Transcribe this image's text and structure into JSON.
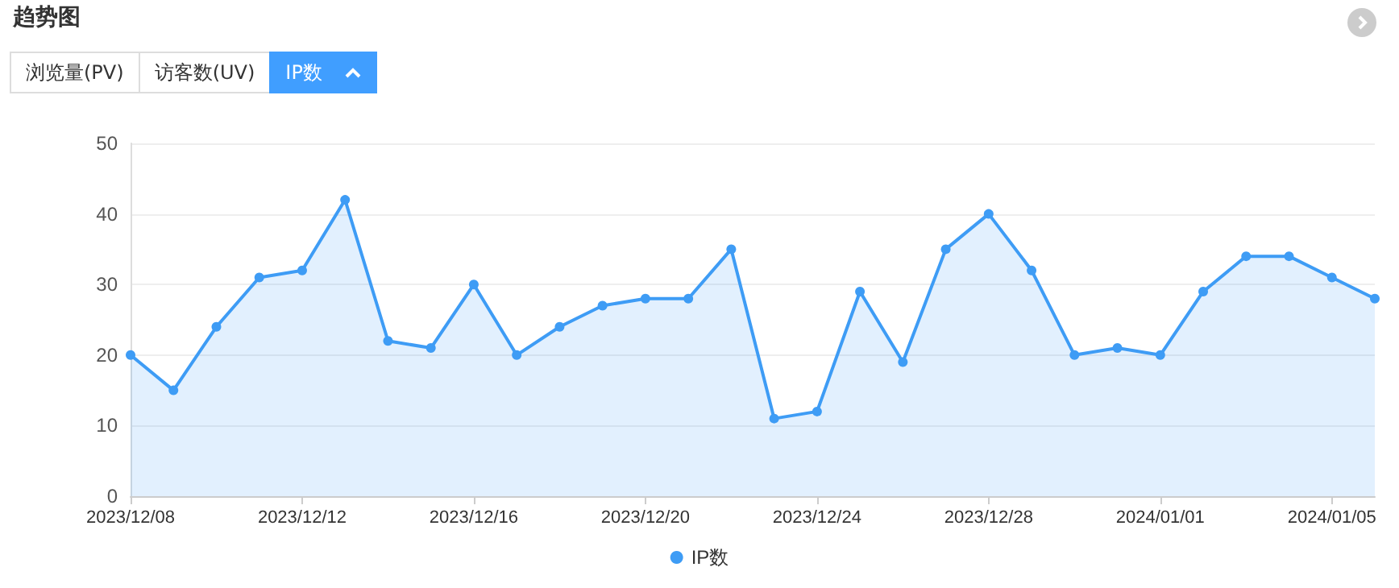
{
  "chart_data": {
    "type": "area",
    "title": "趋势图",
    "annotations": [
      "浏览量(PV)",
      "访客数(UV)",
      "IP数"
    ],
    "x": [
      "2023-12-08",
      "2023-12-09",
      "2023-12-10",
      "2023-12-11",
      "2023-12-12",
      "2023-12-13",
      "2023-12-14",
      "2023-12-15",
      "2023-12-16",
      "2023-12-17",
      "2023-12-18",
      "2023-12-19",
      "2023-12-20",
      "2023-12-21",
      "2023-12-22",
      "2023-12-23",
      "2023-12-24",
      "2023-12-25",
      "2023-12-26",
      "2023-12-27",
      "2023-12-28",
      "2023-12-29",
      "2023-12-30",
      "2023-12-31",
      "2024-01-01",
      "2024-01-02",
      "2024-01-03",
      "2024-01-04",
      "2024-01-05",
      "2024-01-06"
    ],
    "series": [
      {
        "name": "IP数",
        "color": "#3e9cf5",
        "values": [
          20,
          15,
          24,
          31,
          32,
          42,
          22,
          21,
          30,
          20,
          24,
          27,
          28,
          28,
          35,
          11,
          12,
          29,
          19,
          35,
          40,
          32,
          20,
          21,
          20,
          29,
          34,
          34,
          31,
          28
        ]
      }
    ],
    "xlim": [
      "2023-12-08",
      "2024-01-06"
    ],
    "xticks": [
      {
        "value": "2023-12-08",
        "label": "2023/12/08"
      },
      {
        "value": "2023-12-12",
        "label": "2023/12/12"
      },
      {
        "value": "2023-12-16",
        "label": "2023/12/16"
      },
      {
        "value": "2023-12-20",
        "label": "2023/12/20"
      },
      {
        "value": "2023-12-24",
        "label": "2023/12/24"
      },
      {
        "value": "2023-12-28",
        "label": "2023/12/28"
      },
      {
        "value": "2024-01-01",
        "label": "2024/01/01"
      },
      {
        "value": "2024-01-05",
        "label": "2024/01/05"
      }
    ],
    "ylim": [
      0,
      50
    ],
    "yticks": [
      0,
      10,
      20,
      30,
      40,
      50
    ],
    "grid": "y",
    "legend": "bottom",
    "marker": "circle",
    "line_style": "solid"
  }
}
